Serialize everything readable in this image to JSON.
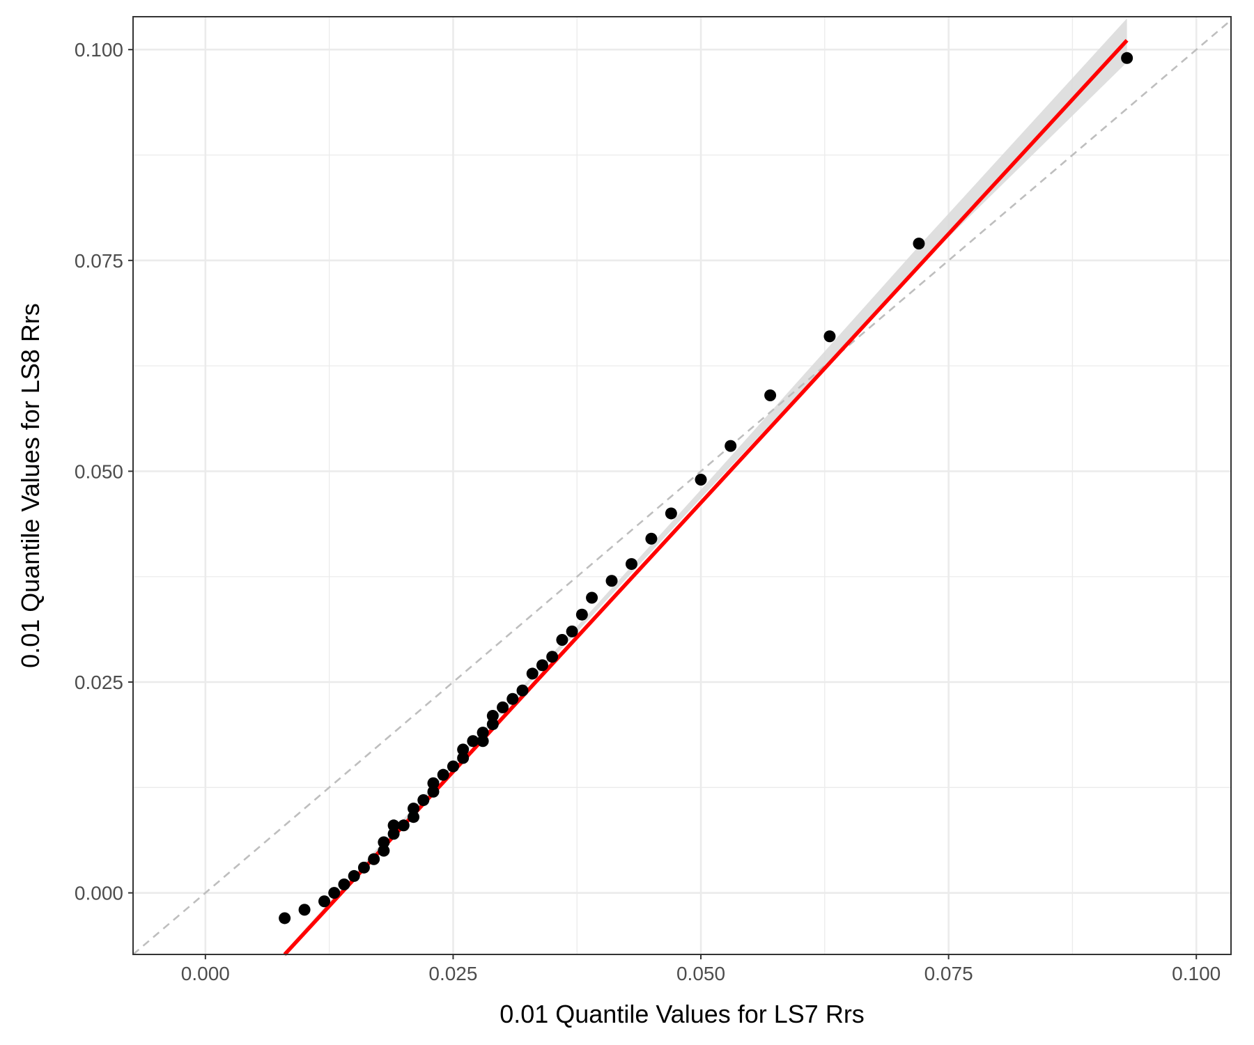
{
  "chart_data": {
    "type": "scatter",
    "title": "",
    "xlabel": "0.01 Quantile Values for LS7 Rrs",
    "ylabel": "0.01 Quantile Values for LS8 Rrs",
    "xlim": [
      -0.0073,
      0.1035
    ],
    "ylim": [
      -0.0073,
      0.1039
    ],
    "x_ticks": [
      "0.000",
      "0.025",
      "0.050",
      "0.075",
      "0.100"
    ],
    "x_tick_values": [
      0,
      0.025,
      0.05,
      0.075,
      0.1
    ],
    "y_ticks": [
      "0.000",
      "0.025",
      "0.050",
      "0.075",
      "0.100"
    ],
    "y_tick_values": [
      0,
      0.025,
      0.05,
      0.075,
      0.1
    ],
    "grid": true,
    "series": [
      {
        "kind": "points",
        "color": "#000000",
        "points": [
          [
            0.008,
            -0.003
          ],
          [
            0.01,
            -0.002
          ],
          [
            0.012,
            -0.001
          ],
          [
            0.013,
            0.0
          ],
          [
            0.014,
            0.001
          ],
          [
            0.015,
            0.002
          ],
          [
            0.016,
            0.003
          ],
          [
            0.017,
            0.004
          ],
          [
            0.018,
            0.005
          ],
          [
            0.018,
            0.006
          ],
          [
            0.019,
            0.007
          ],
          [
            0.019,
            0.008
          ],
          [
            0.02,
            0.008
          ],
          [
            0.021,
            0.009
          ],
          [
            0.021,
            0.01
          ],
          [
            0.022,
            0.011
          ],
          [
            0.023,
            0.012
          ],
          [
            0.023,
            0.013
          ],
          [
            0.024,
            0.014
          ],
          [
            0.025,
            0.015
          ],
          [
            0.026,
            0.016
          ],
          [
            0.026,
            0.017
          ],
          [
            0.027,
            0.018
          ],
          [
            0.028,
            0.018
          ],
          [
            0.028,
            0.019
          ],
          [
            0.029,
            0.02
          ],
          [
            0.029,
            0.021
          ],
          [
            0.03,
            0.022
          ],
          [
            0.031,
            0.023
          ],
          [
            0.032,
            0.024
          ],
          [
            0.033,
            0.026
          ],
          [
            0.034,
            0.027
          ],
          [
            0.035,
            0.028
          ],
          [
            0.036,
            0.03
          ],
          [
            0.037,
            0.031
          ],
          [
            0.038,
            0.033
          ],
          [
            0.039,
            0.035
          ],
          [
            0.041,
            0.037
          ],
          [
            0.043,
            0.039
          ],
          [
            0.045,
            0.042
          ],
          [
            0.047,
            0.045
          ],
          [
            0.05,
            0.049
          ],
          [
            0.053,
            0.053
          ],
          [
            0.057,
            0.059
          ],
          [
            0.063,
            0.066
          ],
          [
            0.072,
            0.077
          ],
          [
            0.093,
            0.099
          ]
        ]
      },
      {
        "kind": "regression-line",
        "color": "#ff0000",
        "x": [
          0.008,
          0.093
        ],
        "y": [
          -0.0073,
          0.1011
        ]
      },
      {
        "kind": "confidence-band",
        "color": "#d9d9d9",
        "x": [
          0.008,
          0.027,
          0.05,
          0.072,
          0.093
        ],
        "lower": [
          -0.0076,
          0.0176,
          0.0468,
          0.0743,
          0.0985
        ],
        "upper": [
          -0.007,
          0.018,
          0.0478,
          0.0767,
          0.1037
        ]
      },
      {
        "kind": "reference-line",
        "style": "dashed",
        "color": "#bebebe",
        "x": [
          -0.0073,
          0.1035
        ],
        "y": [
          -0.0073,
          0.1035
        ]
      }
    ]
  }
}
